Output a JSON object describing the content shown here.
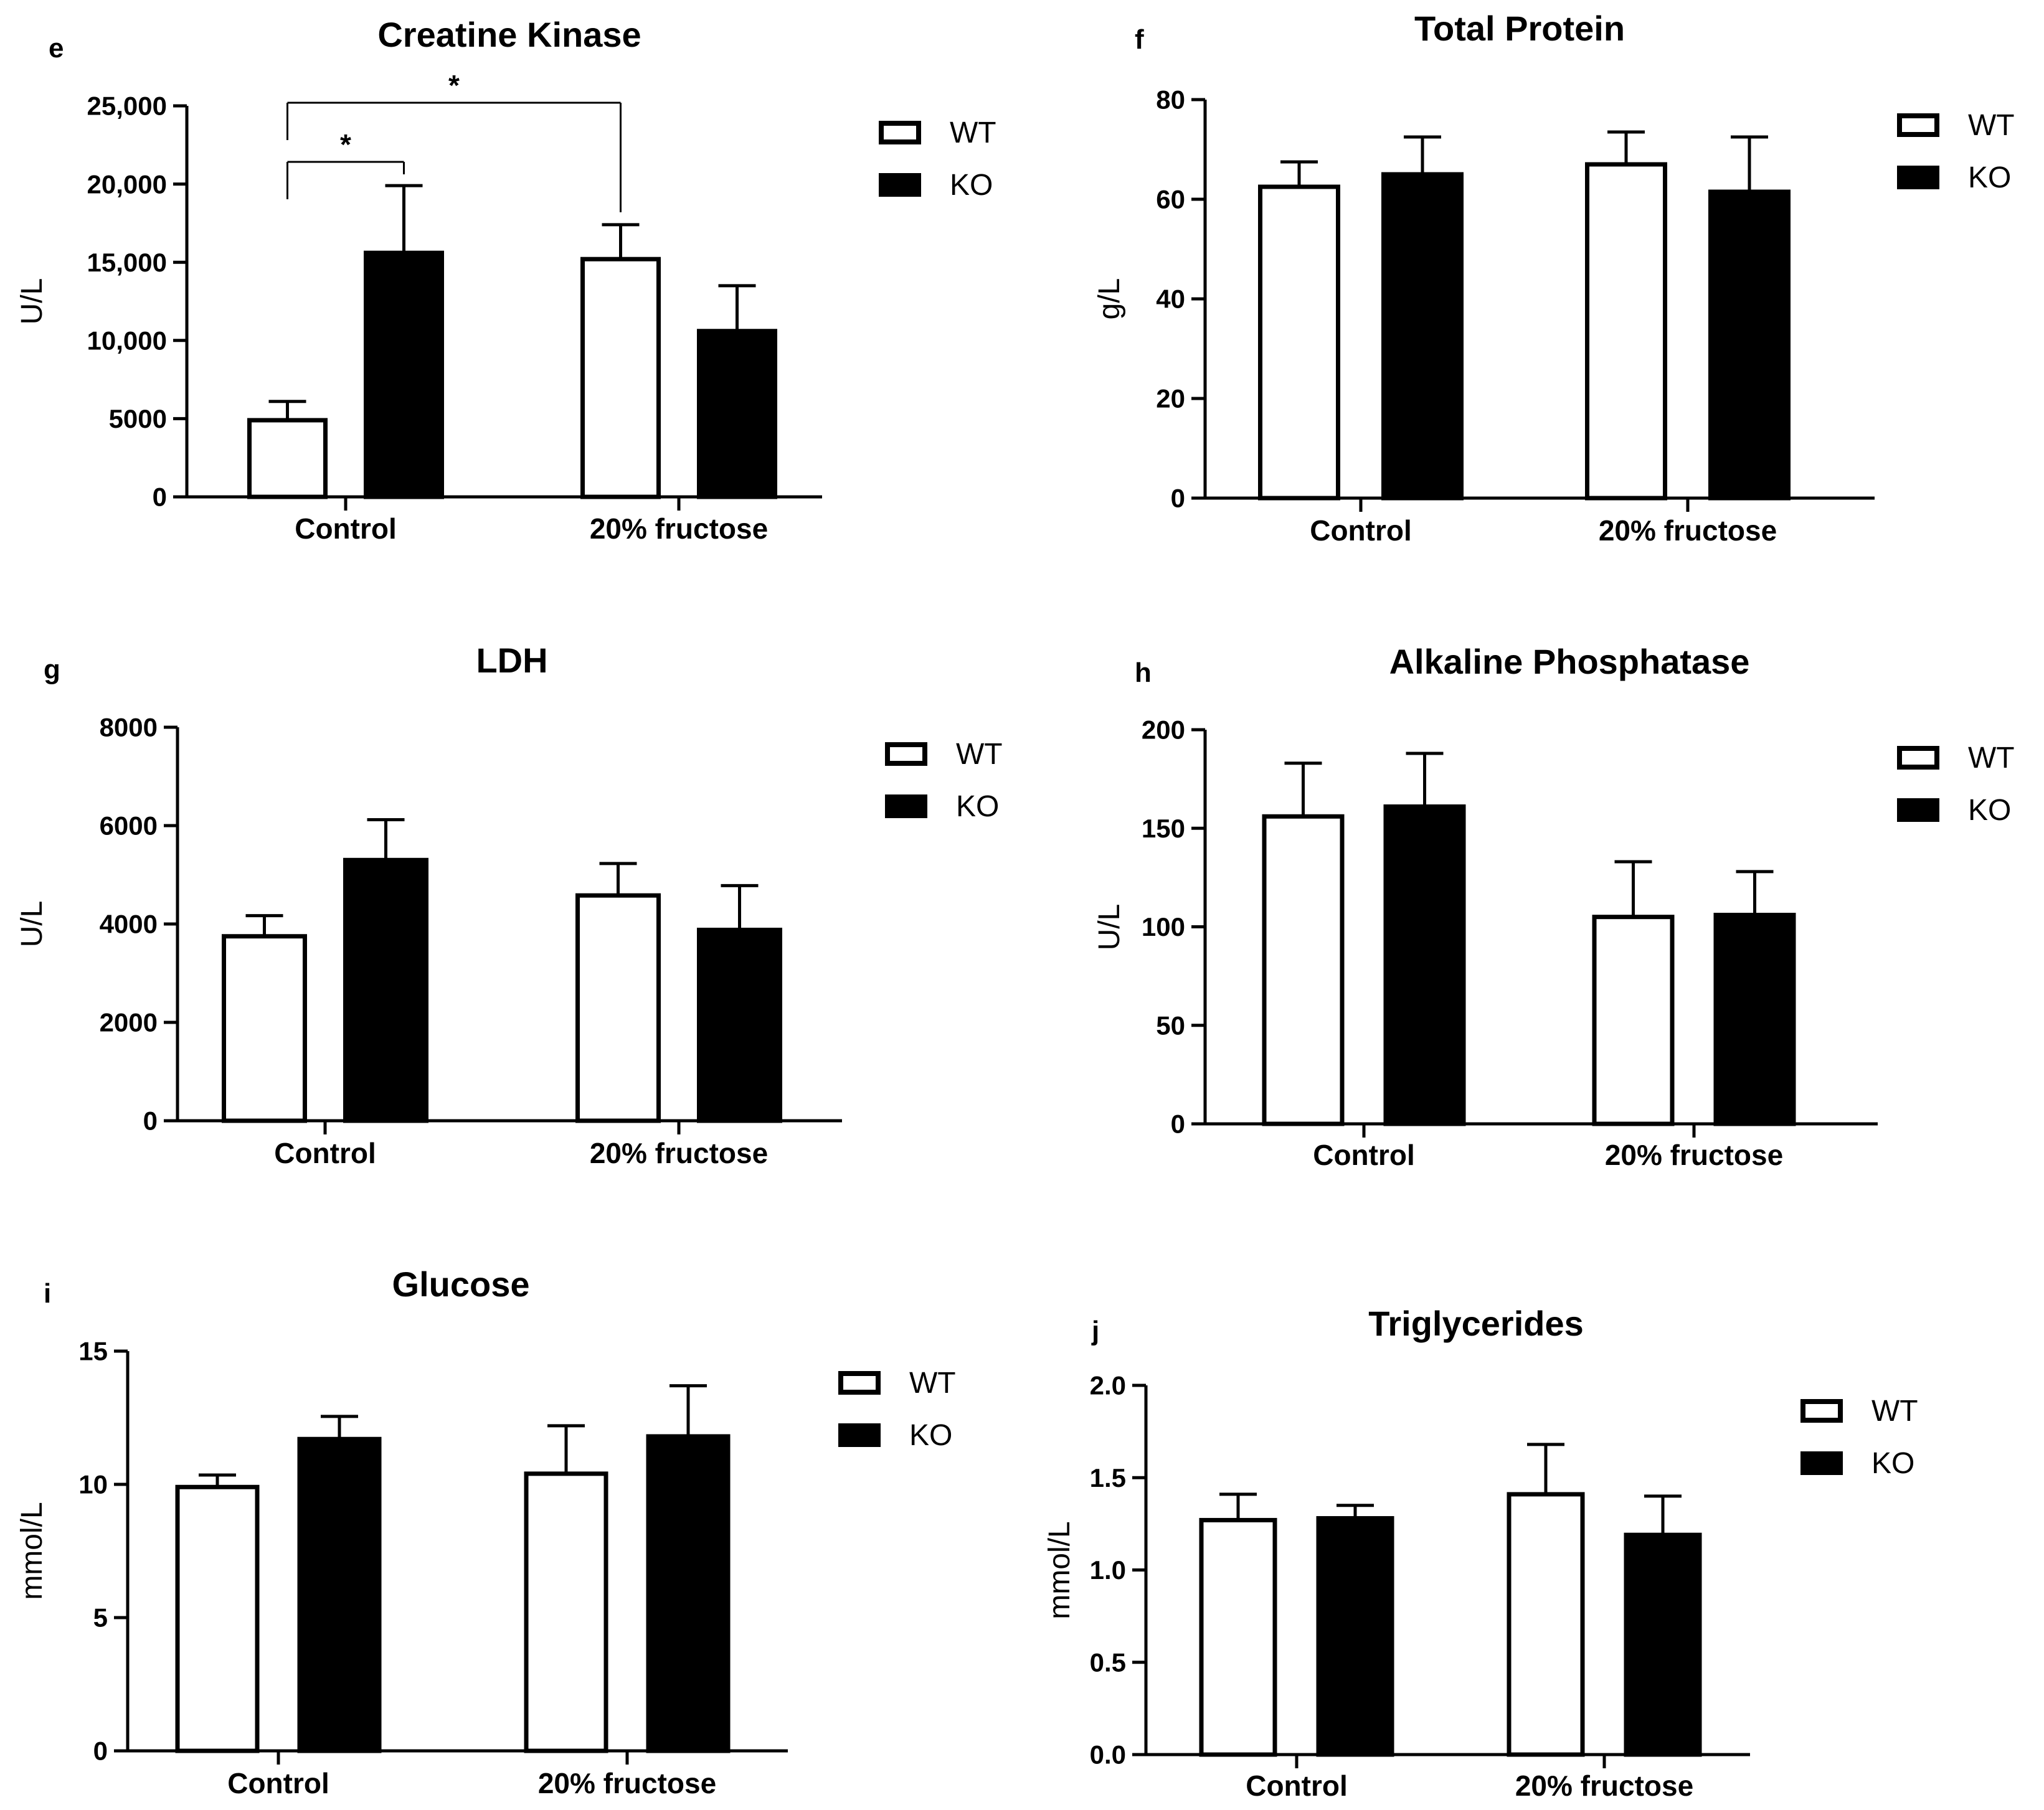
{
  "chart_data": [
    {
      "type": "bar",
      "panel": "e",
      "title": "Creatine Kinase",
      "ylabel": "U/L",
      "xlabel": "",
      "categories": [
        "Control",
        "20% fructose"
      ],
      "series": [
        {
          "name": "WT",
          "values": [
            4900,
            15200
          ],
          "errors": [
            1200,
            2200
          ]
        },
        {
          "name": "KO",
          "values": [
            15600,
            10600
          ],
          "errors": [
            4300,
            2900
          ]
        }
      ],
      "ylim": [
        0,
        25000
      ],
      "yticks": [
        0,
        5000,
        10000,
        15000,
        20000,
        25000
      ],
      "ytick_labels": [
        "0",
        "5000",
        "10,000",
        "15,000",
        "20,000",
        "25,000"
      ],
      "annotations": [
        {
          "text": "*",
          "from": "Control WT",
          "to": "Control KO"
        },
        {
          "text": "*",
          "from": "Control WT",
          "to": "20% fructose WT"
        }
      ],
      "legend": [
        "WT",
        "KO"
      ],
      "colors": {
        "WT": "#ffffff",
        "KO": "#000000"
      }
    },
    {
      "type": "bar",
      "panel": "f",
      "title": "Total Protein",
      "ylabel": "g/L",
      "xlabel": "",
      "categories": [
        "Control",
        "20% fructose"
      ],
      "series": [
        {
          "name": "WT",
          "values": [
            62.5,
            67
          ],
          "errors": [
            5,
            6.5
          ]
        },
        {
          "name": "KO",
          "values": [
            65,
            61.5
          ],
          "errors": [
            7.5,
            11
          ]
        }
      ],
      "ylim": [
        0,
        80
      ],
      "yticks": [
        0,
        20,
        40,
        60,
        80
      ],
      "ytick_labels": [
        "0",
        "20",
        "40",
        "60",
        "80"
      ],
      "legend": [
        "WT",
        "KO"
      ],
      "colors": {
        "WT": "#ffffff",
        "KO": "#000000"
      }
    },
    {
      "type": "bar",
      "panel": "g",
      "title": "LDH",
      "ylabel": "U/L",
      "xlabel": "",
      "categories": [
        "Control",
        "20% fructose"
      ],
      "series": [
        {
          "name": "WT",
          "values": [
            3750,
            4580
          ],
          "errors": [
            420,
            650
          ]
        },
        {
          "name": "KO",
          "values": [
            5300,
            3880
          ],
          "errors": [
            820,
            900
          ]
        }
      ],
      "ylim": [
        0,
        8000
      ],
      "yticks": [
        0,
        2000,
        4000,
        6000,
        8000
      ],
      "ytick_labels": [
        "0",
        "2000",
        "4000",
        "6000",
        "8000"
      ],
      "legend": [
        "WT",
        "KO"
      ],
      "colors": {
        "WT": "#ffffff",
        "KO": "#000000"
      }
    },
    {
      "type": "bar",
      "panel": "h",
      "title": "Alkaline Phosphatase",
      "ylabel": "U/L",
      "xlabel": "",
      "categories": [
        "Control",
        "20% fructose"
      ],
      "series": [
        {
          "name": "WT",
          "values": [
            156,
            105
          ],
          "errors": [
            27,
            28
          ]
        },
        {
          "name": "KO",
          "values": [
            161,
            106
          ],
          "errors": [
            27,
            22
          ]
        }
      ],
      "ylim": [
        0,
        200
      ],
      "yticks": [
        0,
        50,
        100,
        150,
        200
      ],
      "ytick_labels": [
        "0",
        "50",
        "100",
        "150",
        "200"
      ],
      "legend": [
        "WT",
        "KO"
      ],
      "colors": {
        "WT": "#ffffff",
        "KO": "#000000"
      }
    },
    {
      "type": "bar",
      "panel": "i",
      "title": "Glucose",
      "ylabel": "mmol/L",
      "xlabel": "",
      "categories": [
        "Control",
        "20% fructose"
      ],
      "series": [
        {
          "name": "WT",
          "values": [
            9.9,
            10.4
          ],
          "errors": [
            0.45,
            1.8
          ]
        },
        {
          "name": "KO",
          "values": [
            11.7,
            11.8
          ],
          "errors": [
            0.85,
            1.9
          ]
        }
      ],
      "ylim": [
        0,
        15
      ],
      "yticks": [
        0,
        5,
        10,
        15
      ],
      "ytick_labels": [
        "0",
        "5",
        "10",
        "15"
      ],
      "legend": [
        "WT",
        "KO"
      ],
      "colors": {
        "WT": "#ffffff",
        "KO": "#000000"
      }
    },
    {
      "type": "bar",
      "panel": "j",
      "title": "Triglycerides",
      "ylabel": "mmol/L",
      "xlabel": "",
      "categories": [
        "Control",
        "20% fructose"
      ],
      "series": [
        {
          "name": "WT",
          "values": [
            1.27,
            1.41
          ],
          "errors": [
            0.14,
            0.27
          ]
        },
        {
          "name": "KO",
          "values": [
            1.28,
            1.19
          ],
          "errors": [
            0.07,
            0.21
          ]
        }
      ],
      "ylim": [
        0,
        2.0
      ],
      "yticks": [
        0,
        0.5,
        1.0,
        1.5,
        2.0
      ],
      "ytick_labels": [
        "0.0",
        "0.5",
        "1.0",
        "1.5",
        "2.0"
      ],
      "legend": [
        "WT",
        "KO"
      ],
      "colors": {
        "WT": "#ffffff",
        "KO": "#000000"
      }
    }
  ]
}
